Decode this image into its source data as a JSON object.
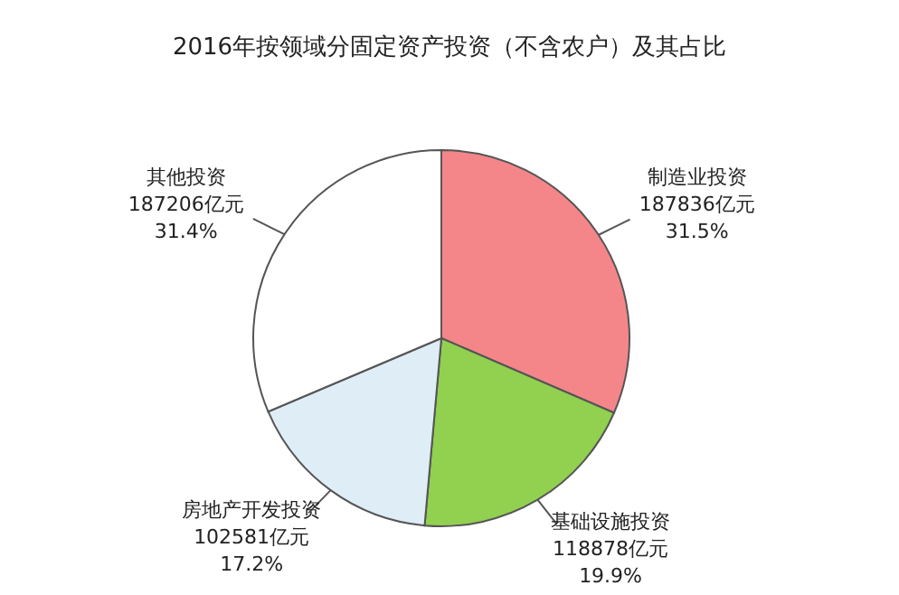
{
  "chart_data": {
    "type": "pie",
    "title": "2016年按领域分固定资产投资（不含农户）及其占比",
    "categories": [
      "制造业投资",
      "基础设施投资",
      "房地产开发投资",
      "其他投资"
    ],
    "values": [
      187836,
      118878,
      102581,
      187206
    ],
    "value_labels": [
      "187836亿元\n31.5%",
      "118878亿元\n19.9%",
      "102581亿元\n17.2%",
      "187206亿元\n31.4%"
    ],
    "colors": [
      "#f4868a",
      "#92d050",
      "#deedf6",
      "#ffffff"
    ]
  }
}
